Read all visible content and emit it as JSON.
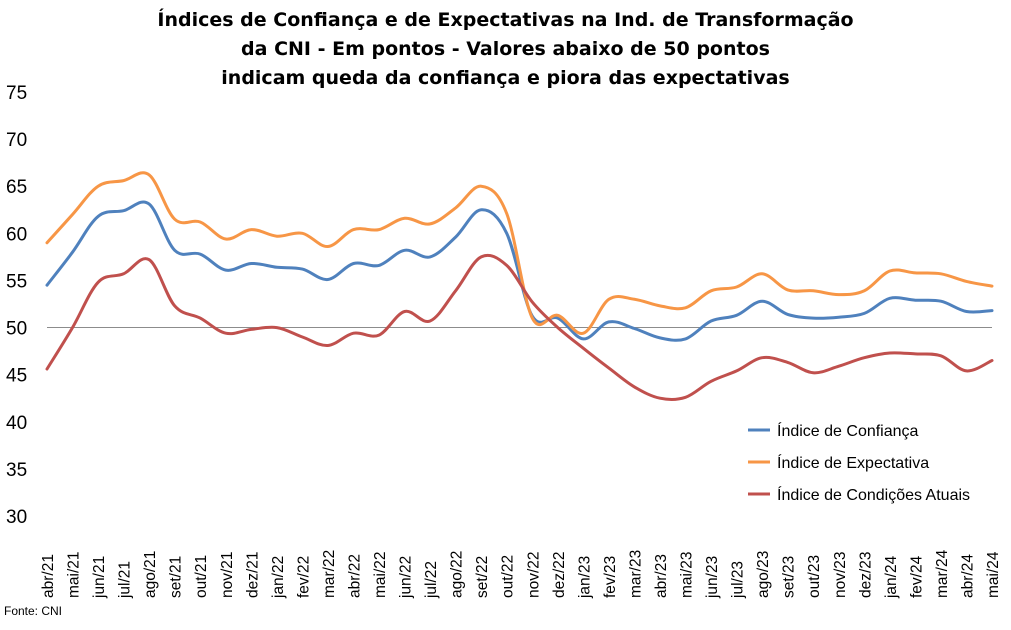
{
  "chart_data": {
    "type": "line",
    "title_lines": [
      "Índices de Confiança e de Expectativas na Ind. de Transformação",
      "da CNI - Em pontos - Valores abaixo de 50 pontos",
      "indicam queda da confiança e piora das expectativas"
    ],
    "xlabel": "",
    "ylabel": "",
    "ylim": [
      30,
      75
    ],
    "yticks": [
      30,
      35,
      40,
      45,
      50,
      55,
      60,
      65,
      70,
      75
    ],
    "reference_line": 50,
    "grid": false,
    "legend_position": "bottom-right",
    "categories": [
      "abr/21",
      "mai/21",
      "jun/21",
      "jul/21",
      "ago/21",
      "set/21",
      "out/21",
      "nov/21",
      "dez/21",
      "jan/22",
      "fev/22",
      "mar/22",
      "abr/22",
      "mai/22",
      "jun/22",
      "jul/22",
      "ago/22",
      "set/22",
      "out/22",
      "nov/22",
      "dez/22",
      "jan/23",
      "fev/23",
      "mar/23",
      "abr/23",
      "mai/23",
      "jun/23",
      "jul/23",
      "ago/23",
      "set/23",
      "out/23",
      "nov/23",
      "dez/23",
      "jan/24",
      "fev/24",
      "mar/24",
      "abr/24",
      "mai/24"
    ],
    "series": [
      {
        "name": "Índice de Confiança",
        "color": "#4f81bd",
        "values": [
          54.5,
          58.0,
          61.8,
          62.4,
          63.1,
          58.2,
          57.8,
          56.1,
          56.8,
          56.4,
          56.2,
          55.1,
          56.8,
          56.6,
          58.2,
          57.5,
          59.6,
          62.5,
          60.0,
          51.2,
          51.0,
          48.8,
          50.6,
          49.9,
          48.9,
          48.8,
          50.7,
          51.3,
          52.8,
          51.4,
          51.0,
          51.1,
          51.5,
          53.1,
          52.9,
          52.8,
          51.7,
          51.8
        ]
      },
      {
        "name": "Índice de Expectativa",
        "color": "#f79646",
        "values": [
          59.0,
          62.0,
          65.0,
          65.6,
          66.2,
          61.5,
          61.2,
          59.4,
          60.4,
          59.7,
          60.0,
          58.6,
          60.4,
          60.4,
          61.6,
          61.0,
          62.7,
          65.0,
          62.1,
          51.0,
          51.3,
          49.4,
          53.0,
          53.0,
          52.3,
          52.1,
          53.9,
          54.3,
          55.7,
          54.0,
          53.9,
          53.5,
          53.9,
          56.0,
          55.8,
          55.7,
          54.9,
          54.4
        ]
      },
      {
        "name": "Índice de Condições Atuais",
        "color": "#c0504d",
        "values": [
          45.6,
          50.0,
          54.8,
          55.7,
          57.2,
          52.3,
          51.0,
          49.4,
          49.8,
          50.0,
          49.0,
          48.1,
          49.4,
          49.2,
          51.7,
          50.7,
          53.9,
          57.5,
          56.6,
          52.7,
          50.0,
          47.8,
          45.7,
          43.7,
          42.5,
          42.6,
          44.3,
          45.4,
          46.8,
          46.3,
          45.2,
          45.9,
          46.8,
          47.3,
          47.2,
          47.0,
          45.4,
          46.5
        ]
      }
    ],
    "source": "Fonte: CNI"
  }
}
